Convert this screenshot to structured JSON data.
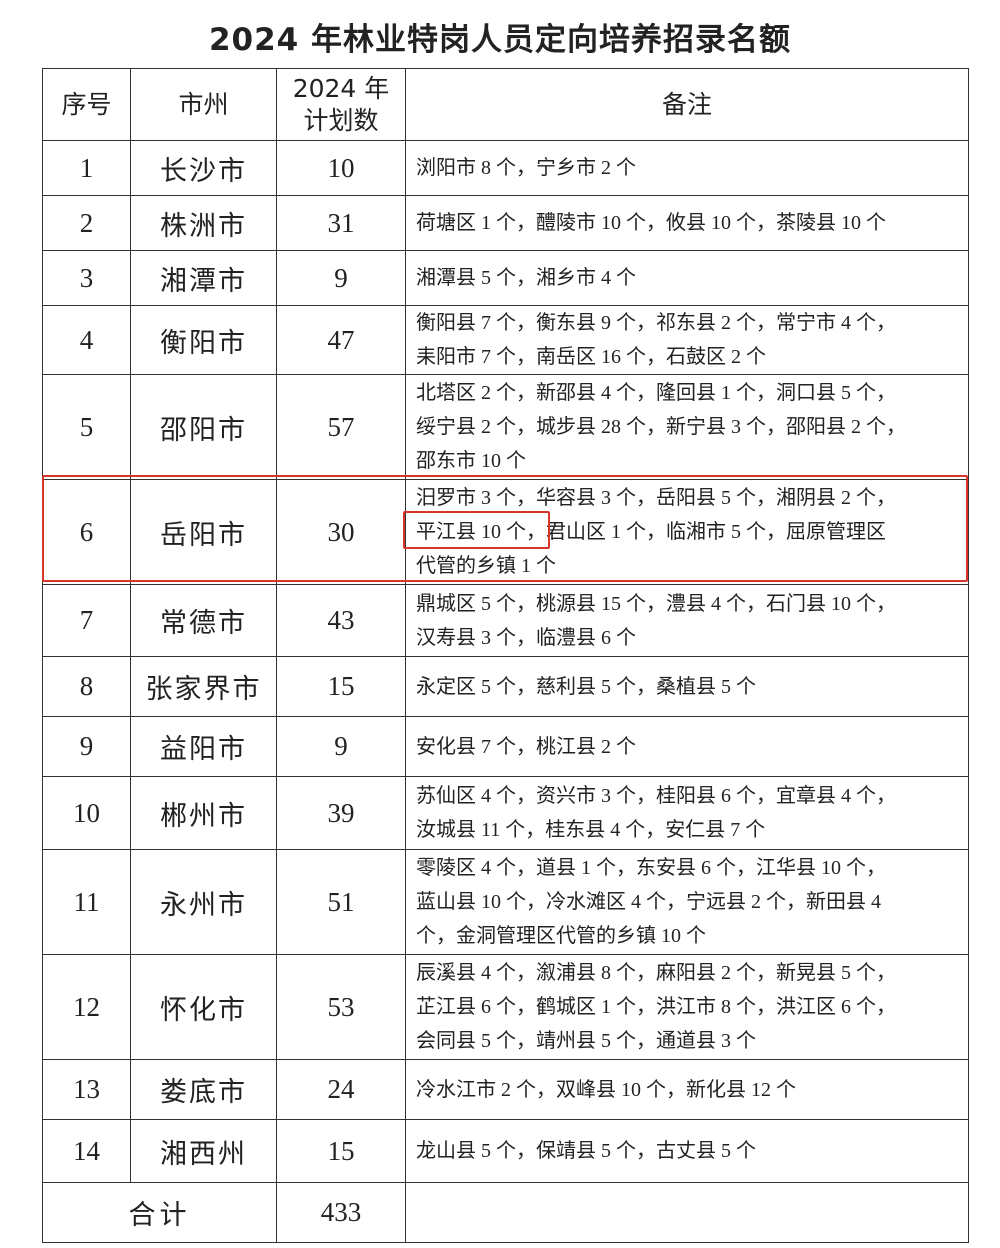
{
  "title": "2024 年林业特岗人员定向培养招录名额",
  "headers": {
    "index": "序号",
    "city": "市州",
    "plan_line1": "2024 年",
    "plan_line2": "计划数",
    "remark": "备注"
  },
  "rows": [
    {
      "index": "1",
      "city": "长沙市",
      "plan": "10",
      "remark": [
        "浏阳市 8 个，宁乡市 2 个"
      ]
    },
    {
      "index": "2",
      "city": "株洲市",
      "plan": "31",
      "remark": [
        "荷塘区 1 个，醴陵市 10 个，攸县 10 个，茶陵县 10 个"
      ]
    },
    {
      "index": "3",
      "city": "湘潭市",
      "plan": "9",
      "remark": [
        "湘潭县 5 个，湘乡市 4 个"
      ]
    },
    {
      "index": "4",
      "city": "衡阳市",
      "plan": "47",
      "remark": [
        "衡阳县 7 个，衡东县 9 个，祁东县 2 个，常宁市 4 个，",
        "耒阳市 7 个，南岳区 16 个，石鼓区 2 个"
      ]
    },
    {
      "index": "5",
      "city": "邵阳市",
      "plan": "57",
      "remark": [
        "北塔区 2 个，新邵县 4 个，隆回县 1 个，洞口县 5 个，",
        "绥宁县 2 个，城步县 28 个，新宁县 3 个，邵阳县 2 个，",
        "邵东市 10 个"
      ]
    },
    {
      "index": "6",
      "city": "岳阳市",
      "plan": "30",
      "remark": [
        "汨罗市 3 个，华容县 3 个，岳阳县 5 个，湘阴县 2 个，",
        "平江县 10 个，君山区 1 个，临湘市 5 个，屈原管理区",
        "代管的乡镇 1 个"
      ]
    },
    {
      "index": "7",
      "city": "常德市",
      "plan": "43",
      "remark": [
        "鼎城区 5 个，桃源县 15 个，澧县 4 个，石门县 10 个，",
        "汉寿县 3 个，临澧县 6 个"
      ]
    },
    {
      "index": "8",
      "city": "张家界市",
      "plan": "15",
      "remark": [
        "永定区 5 个，慈利县 5 个，桑植县 5 个"
      ]
    },
    {
      "index": "9",
      "city": "益阳市",
      "plan": "9",
      "remark": [
        "安化县 7 个，桃江县 2 个"
      ]
    },
    {
      "index": "10",
      "city": "郴州市",
      "plan": "39",
      "remark": [
        "苏仙区 4 个，资兴市 3 个，桂阳县 6 个，宜章县 4 个，",
        "汝城县 11 个，桂东县 4 个，安仁县 7 个"
      ]
    },
    {
      "index": "11",
      "city": "永州市",
      "plan": "51",
      "remark": [
        "零陵区 4 个，道县 1 个，东安县 6 个，江华县 10 个，",
        "蓝山县 10 个，冷水滩区 4 个，宁远县 2 个，新田县 4",
        "个，金洞管理区代管的乡镇 10 个"
      ]
    },
    {
      "index": "12",
      "city": "怀化市",
      "plan": "53",
      "remark": [
        "辰溪县 4 个，溆浦县 8 个，麻阳县 2 个，新晃县 5 个，",
        "芷江县 6 个，鹤城区 1 个，洪江市 8 个，洪江区 6 个，",
        "会同县 5 个，靖州县 5 个，通道县 3 个"
      ]
    },
    {
      "index": "13",
      "city": "娄底市",
      "plan": "24",
      "remark": [
        "冷水江市 2 个，双峰县 10 个，新化县 12 个"
      ]
    },
    {
      "index": "14",
      "city": "湘西州",
      "plan": "15",
      "remark": [
        "龙山县 5 个，保靖县 5 个，古丈县 5 个"
      ]
    }
  ],
  "total": {
    "label": "合计",
    "plan": "433",
    "remark": ""
  },
  "highlight_color": "#d9342b"
}
